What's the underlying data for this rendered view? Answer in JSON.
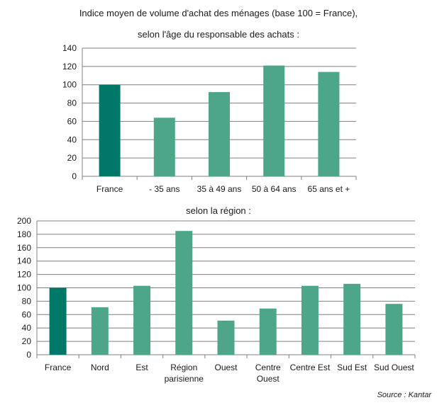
{
  "title_line1": "Indice moyen de volume d'achat des ménages (base 100 = France),",
  "source": "Source : Kantar",
  "colors": {
    "france": "#007868",
    "others": "#4ea68a",
    "axis": "#7f7f7f",
    "grid": "#7f7f7f"
  },
  "chart_data": [
    {
      "type": "bar",
      "title": "selon l'âge du responsable des achats :",
      "categories": [
        [
          "France"
        ],
        [
          "- 35 ans"
        ],
        [
          "35 à 49 ans"
        ],
        [
          "50 à 64 ans"
        ],
        [
          "65 ans et +"
        ]
      ],
      "values": [
        100,
        64,
        92,
        121,
        114
      ],
      "ylim": [
        0,
        140
      ],
      "yticks": [
        0,
        20,
        40,
        60,
        80,
        100,
        120,
        140
      ],
      "grid": true,
      "highlight_index": 0
    },
    {
      "type": "bar",
      "title": "selon la région :",
      "categories": [
        [
          "France"
        ],
        [
          "Nord"
        ],
        [
          "Est"
        ],
        [
          "Région",
          "parisienne"
        ],
        [
          "Ouest"
        ],
        [
          "Centre",
          "Ouest"
        ],
        [
          "Centre Est"
        ],
        [
          "Sud Est"
        ],
        [
          "Sud Ouest"
        ]
      ],
      "values": [
        100,
        71,
        103,
        185,
        51,
        69,
        103,
        106,
        76
      ],
      "ylim": [
        0,
        200
      ],
      "yticks": [
        0,
        20,
        40,
        60,
        80,
        100,
        120,
        140,
        160,
        180,
        200
      ],
      "grid": true,
      "highlight_index": 0
    }
  ]
}
